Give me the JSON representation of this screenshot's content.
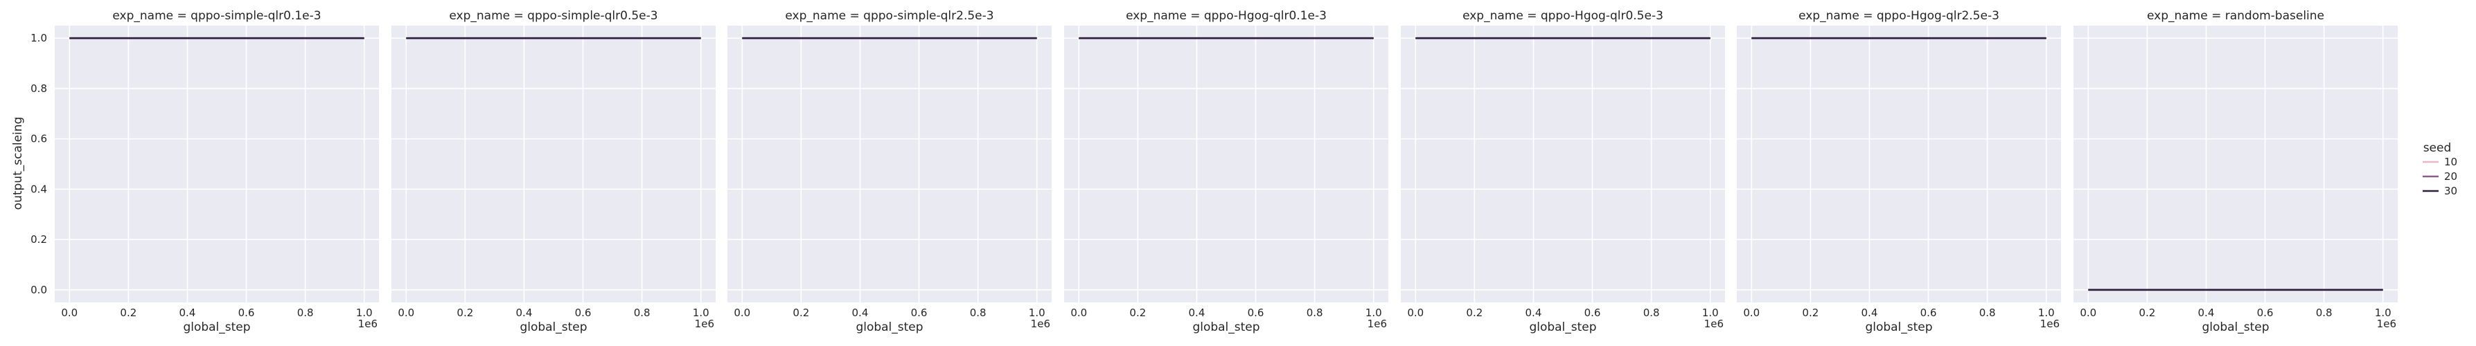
{
  "chart_data": {
    "type": "line",
    "facet_label": "exp_name",
    "xlabel": "global_step",
    "ylabel": "output_scaleing",
    "x_offset_label": "1e6",
    "xlim": [
      -50000,
      1050000
    ],
    "ylim": [
      -0.05,
      1.05
    ],
    "xticks": [
      0,
      200000,
      400000,
      600000,
      800000,
      1000000
    ],
    "xtick_labels": [
      "0.0",
      "0.2",
      "0.4",
      "0.6",
      "0.8",
      "1.0"
    ],
    "yticks": [
      0,
      0.2,
      0.4,
      0.6,
      0.8,
      1.0
    ],
    "ytick_labels": [
      "0.0",
      "0.2",
      "0.4",
      "0.6",
      "0.8",
      "1.0"
    ],
    "grid": true,
    "legend": {
      "title": "seed",
      "placement": "right",
      "entries": [
        {
          "label": "10",
          "color": "#e8b8c4"
        },
        {
          "label": "20",
          "color": "#8c5c8c"
        },
        {
          "label": "30",
          "color": "#2d1e3e"
        }
      ]
    },
    "panels": [
      {
        "title": "exp_name = qppo-simple-qlr0.1e-3",
        "series": [
          {
            "seed": "10",
            "x": [
              0,
              1000000
            ],
            "y": [
              1.0,
              1.0
            ]
          },
          {
            "seed": "20",
            "x": [
              0,
              1000000
            ],
            "y": [
              1.0,
              1.0
            ]
          },
          {
            "seed": "30",
            "x": [
              0,
              1000000
            ],
            "y": [
              1.0,
              1.0
            ]
          }
        ]
      },
      {
        "title": "exp_name = qppo-simple-qlr0.5e-3",
        "series": [
          {
            "seed": "10",
            "x": [
              0,
              1000000
            ],
            "y": [
              1.0,
              1.0
            ]
          },
          {
            "seed": "20",
            "x": [
              0,
              1000000
            ],
            "y": [
              1.0,
              1.0
            ]
          },
          {
            "seed": "30",
            "x": [
              0,
              1000000
            ],
            "y": [
              1.0,
              1.0
            ]
          }
        ]
      },
      {
        "title": "exp_name = qppo-simple-qlr2.5e-3",
        "series": [
          {
            "seed": "10",
            "x": [
              0,
              1000000
            ],
            "y": [
              1.0,
              1.0
            ]
          },
          {
            "seed": "20",
            "x": [
              0,
              1000000
            ],
            "y": [
              1.0,
              1.0
            ]
          },
          {
            "seed": "30",
            "x": [
              0,
              1000000
            ],
            "y": [
              1.0,
              1.0
            ]
          }
        ]
      },
      {
        "title": "exp_name = qppo-Hgog-qlr0.1e-3",
        "series": [
          {
            "seed": "10",
            "x": [
              0,
              1000000
            ],
            "y": [
              1.0,
              1.0
            ]
          },
          {
            "seed": "20",
            "x": [
              0,
              1000000
            ],
            "y": [
              1.0,
              1.0
            ]
          },
          {
            "seed": "30",
            "x": [
              0,
              1000000
            ],
            "y": [
              1.0,
              1.0
            ]
          }
        ]
      },
      {
        "title": "exp_name = qppo-Hgog-qlr0.5e-3",
        "series": [
          {
            "seed": "10",
            "x": [
              0,
              1000000
            ],
            "y": [
              1.0,
              1.0
            ]
          },
          {
            "seed": "20",
            "x": [
              0,
              1000000
            ],
            "y": [
              1.0,
              1.0
            ]
          },
          {
            "seed": "30",
            "x": [
              0,
              1000000
            ],
            "y": [
              1.0,
              1.0
            ]
          }
        ]
      },
      {
        "title": "exp_name = qppo-Hgog-qlr2.5e-3",
        "series": [
          {
            "seed": "10",
            "x": [
              0,
              1000000
            ],
            "y": [
              1.0,
              1.0
            ]
          },
          {
            "seed": "20",
            "x": [
              0,
              1000000
            ],
            "y": [
              1.0,
              1.0
            ]
          },
          {
            "seed": "30",
            "x": [
              0,
              1000000
            ],
            "y": [
              1.0,
              1.0
            ]
          }
        ]
      },
      {
        "title": "exp_name = random-baseline",
        "series": [
          {
            "seed": "10",
            "x": [
              0,
              1000000
            ],
            "y": [
              0.0,
              0.0
            ]
          },
          {
            "seed": "20",
            "x": [
              0,
              1000000
            ],
            "y": [
              0.0,
              0.0
            ]
          },
          {
            "seed": "30",
            "x": [
              0,
              1000000
            ],
            "y": [
              0.0,
              0.0
            ]
          }
        ]
      }
    ]
  },
  "colors": {
    "axes_background": "#eaeaf2",
    "grid": "#ffffff",
    "text": "#262626"
  }
}
